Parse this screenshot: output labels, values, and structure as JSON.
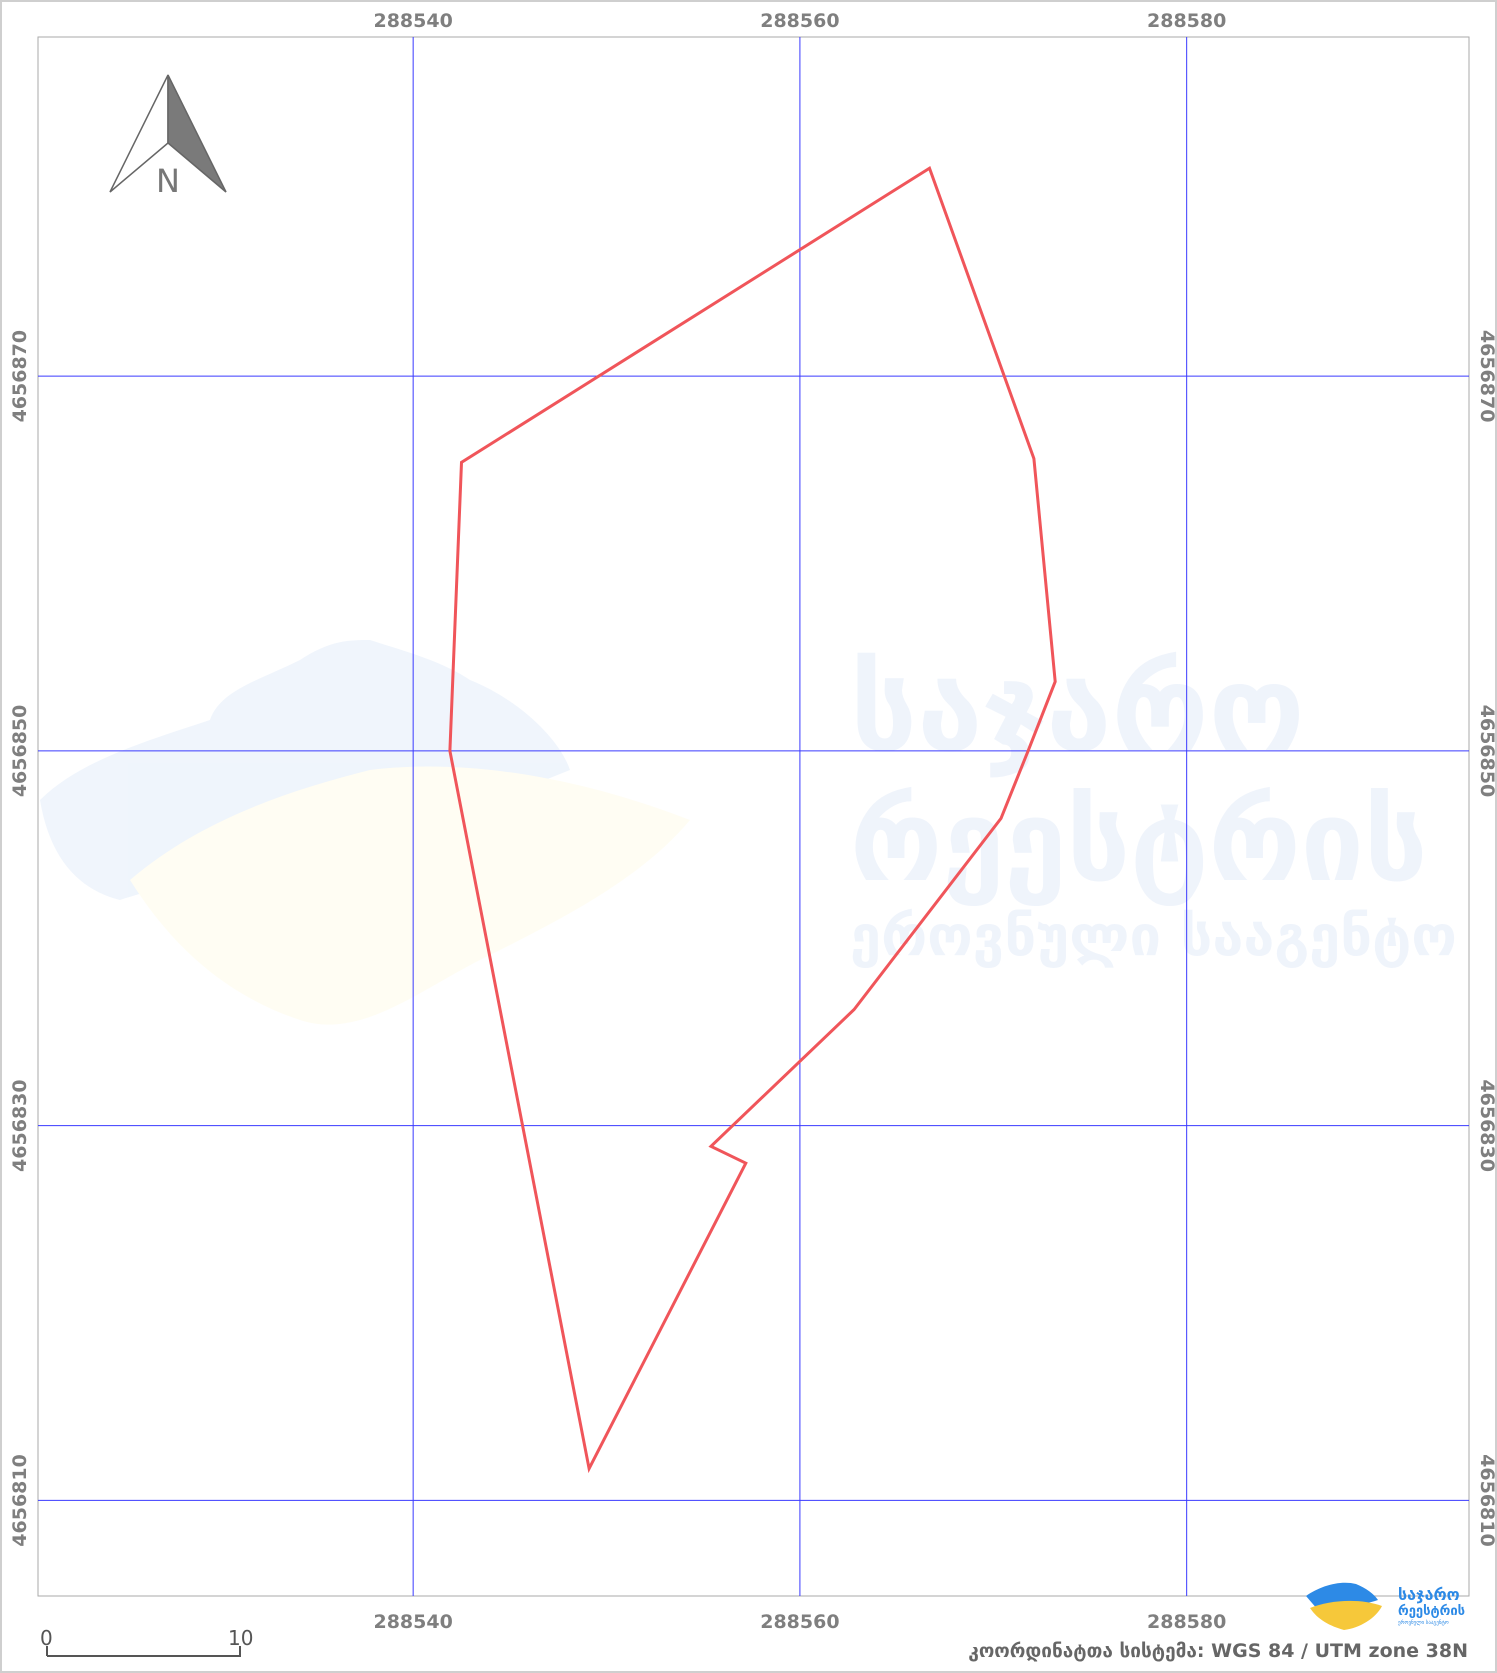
{
  "map": {
    "x_ticks": [
      288540,
      288560,
      288580
    ],
    "y_ticks": [
      4656870,
      4656850,
      4656830,
      4656810
    ],
    "x_tick_labels": [
      "288540",
      "288560",
      "288580"
    ],
    "y_tick_labels": [
      "4656870",
      "4656850",
      "4656830",
      "4656810"
    ],
    "x_range": [
      288520.6,
      288594.6
    ],
    "y_range": [
      4656804.9,
      4656888.1
    ],
    "grid_color": "#3a3aff",
    "boundary_color": "#f0555a",
    "parcel_vertices": [
      [
        288566.7,
        4656881.1
      ],
      [
        288572.1,
        4656865.6
      ],
      [
        288573.2,
        4656853.7
      ],
      [
        288571.8,
        4656850.0
      ],
      [
        288570.4,
        4656846.4
      ],
      [
        288562.8,
        4656836.2
      ],
      [
        288555.4,
        4656828.9
      ],
      [
        288557.2,
        4656828.0
      ],
      [
        288549.1,
        4656811.7
      ],
      [
        288541.9,
        4656850.0
      ],
      [
        288542.5,
        4656865.4
      ]
    ]
  },
  "north_arrow": {
    "label": "N"
  },
  "scale_bar": {
    "start_label": "0",
    "end_label": "10"
  },
  "crs_label": "კოორდინატთა სისტემა: WGS 84 / UTM zone 38N",
  "watermark": {
    "line1": "საჯარო",
    "line2": "რეესტრის",
    "line3": "ეროვნული სააგენტო"
  },
  "logo": {
    "line1": "საჯარო",
    "line2": "რეესტრის",
    "line3": "ეროვნული სააგენტო",
    "blue": "#2d8ae6",
    "yellow": "#f6c83a"
  }
}
